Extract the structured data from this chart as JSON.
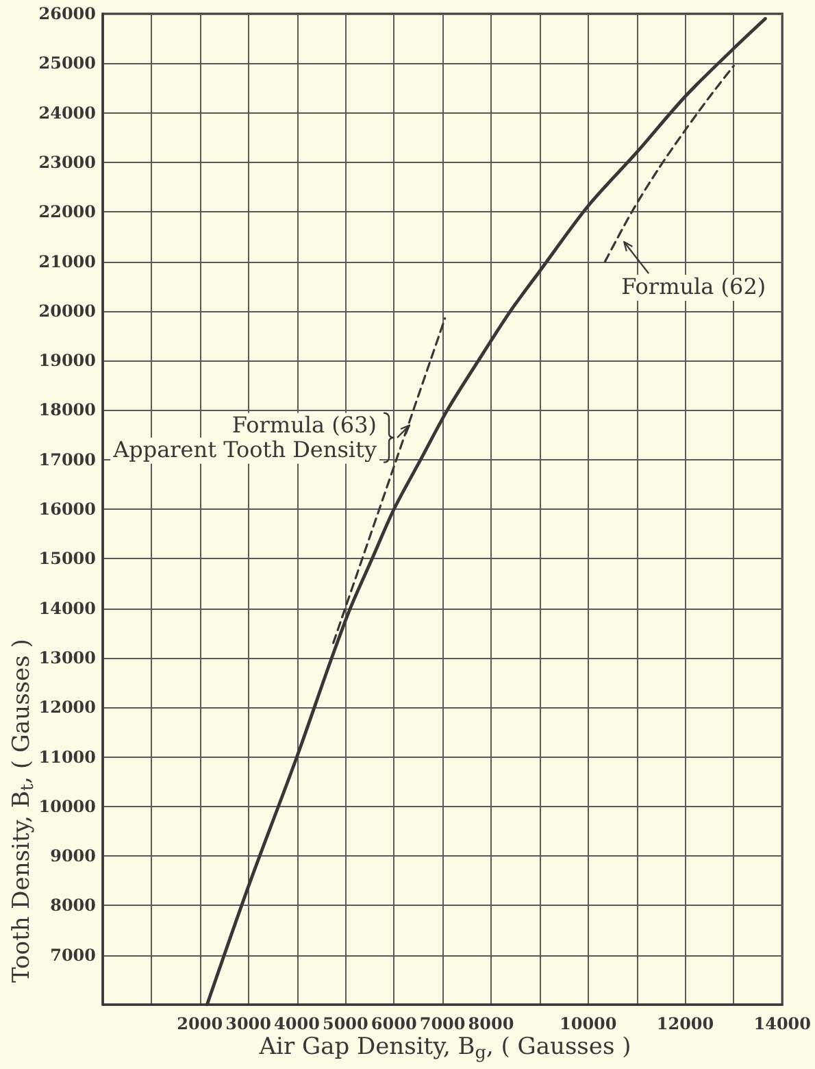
{
  "chart_data": {
    "type": "line",
    "xlabel": "Air Gap Density, B$_{g}$, ( Gausses )",
    "ylabel": "Tooth Density, B$_{t}$, ( Gausses )",
    "xlim": [
      0,
      14000
    ],
    "xticks": [
      {
        "value": 0,
        "label": null
      },
      {
        "value": 1000,
        "label": null
      },
      2000,
      3000,
      4000,
      5000,
      6000,
      7000,
      8000,
      {
        "value": 9000,
        "label": null
      },
      10000,
      {
        "value": 11000,
        "label": null
      },
      12000,
      {
        "value": 13000,
        "label": null
      },
      14000
    ],
    "ylim": [
      6000,
      26000
    ],
    "yticks": [
      {
        "value": 6000,
        "label": null
      },
      7000,
      8000,
      9000,
      10000,
      11000,
      12000,
      13000,
      14000,
      15000,
      16000,
      17000,
      18000,
      19000,
      20000,
      21000,
      22000,
      23000,
      24000,
      25000,
      26000
    ],
    "grid": true,
    "series": [
      {
        "color": "#3a3636",
        "line_style": "solid",
        "x": [
          2150,
          3000,
          4000,
          4700,
          5100,
          5550,
          6000,
          6550,
          7100,
          7740,
          8400,
          9000,
          10000,
          11000,
          12000,
          13000,
          13650
        ],
        "values": [
          6000,
          8380,
          11000,
          12950,
          14000,
          15000,
          16000,
          17000,
          18000,
          19000,
          20000,
          20800,
          22120,
          23200,
          24330,
          25300,
          25900
        ]
      },
      {
        "color": "#3a3636",
        "line_style": "dashed",
        "x": [
          4750,
          7050
        ],
        "values": [
          13300,
          19850
        ]
      },
      {
        "color": "#3a3636",
        "line_style": "dashed",
        "x": [
          10350,
          10900,
          11450,
          12000,
          12500,
          13000
        ],
        "values": [
          21000,
          22000,
          22870,
          23650,
          24320,
          24950
        ]
      }
    ],
    "annotations": [
      {
        "text": "Formula (63)",
        "x": 6300,
        "y": 17720
      },
      "Apparent Tooth Density",
      {
        "text": "Formula (62)",
        "x": 10600,
        "y": 21450
      }
    ]
  }
}
